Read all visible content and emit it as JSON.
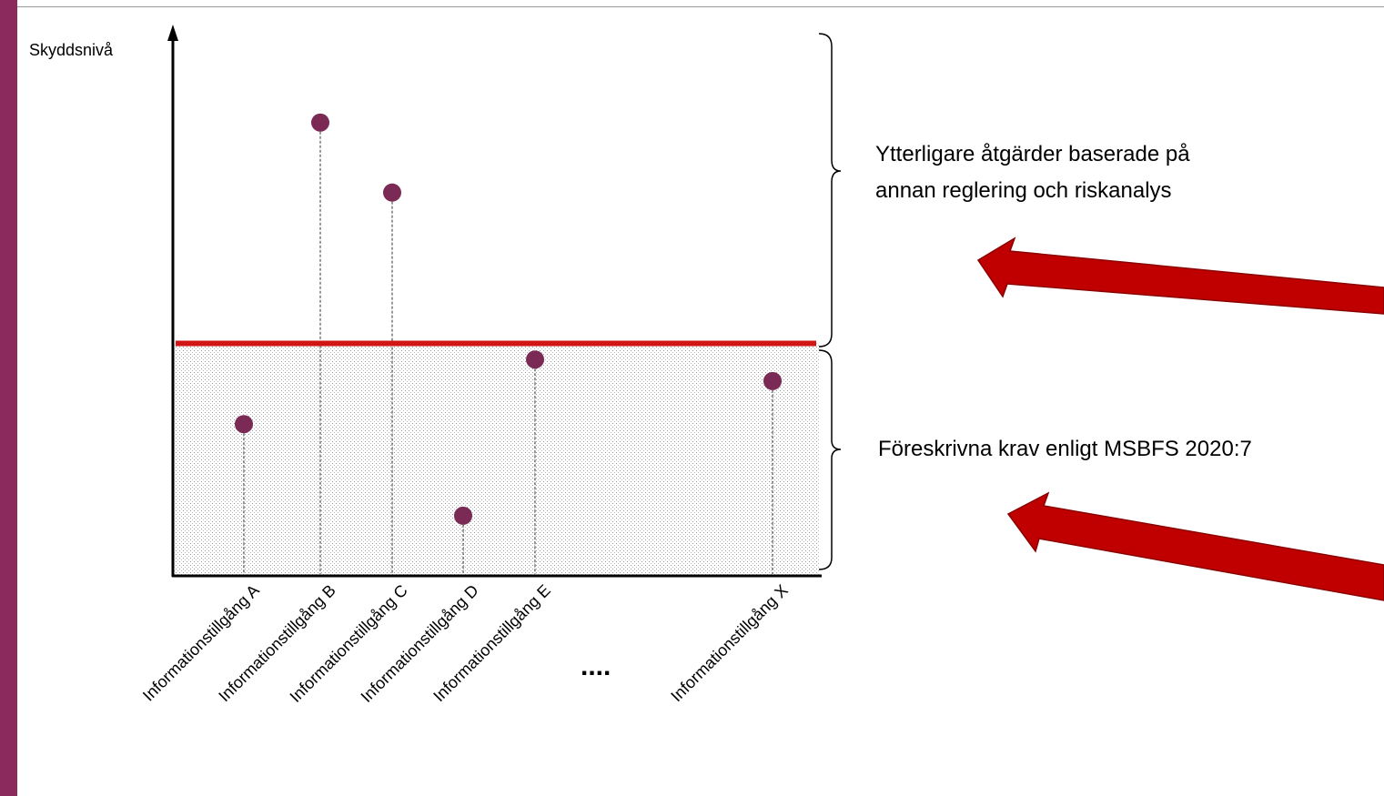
{
  "colors": {
    "accent_bar": "#8b2a5c",
    "marker": "#7a2a55",
    "baseline": "#d11414",
    "arrow": "#c00000",
    "arrow_edge": "#8a0000"
  },
  "axis": {
    "y_label": "Skyddsnivå"
  },
  "chart_data": {
    "type": "scatter",
    "ylabel": "Skyddsnivå",
    "ylim": [
      0,
      10
    ],
    "baseline_level": 4.3,
    "categories": [
      "Informationstillgång A",
      "Informationstillgång B",
      "Informationstillgång C",
      "Informationstillgång D",
      "Informationstillgång E",
      "Informationstillgång X"
    ],
    "points": [
      {
        "category": "Informationstillgång A",
        "value": 2.8
      },
      {
        "category": "Informationstillgång B",
        "value": 8.4
      },
      {
        "category": "Informationstillgång C",
        "value": 7.1
      },
      {
        "category": "Informationstillgång D",
        "value": 1.1
      },
      {
        "category": "Informationstillgång E",
        "value": 4.0
      },
      {
        "category": "Informationstillgång X",
        "value": 3.6
      }
    ],
    "gap_label": "...."
  },
  "annotations": {
    "upper": [
      "Ytterligare åtgärder baserade på",
      "annan reglering och riskanalys"
    ],
    "lower": "Föreskrivna krav enligt MSBFS 2020:7"
  }
}
